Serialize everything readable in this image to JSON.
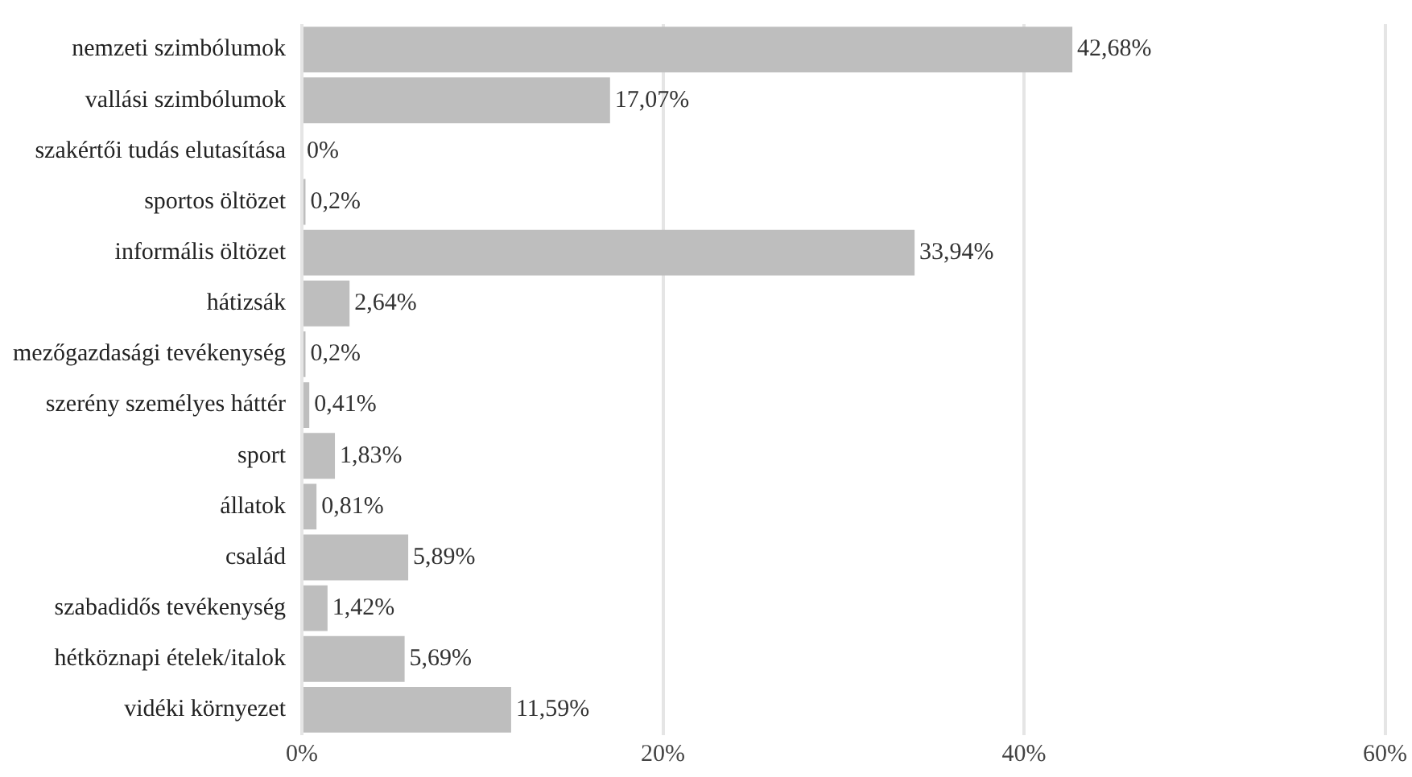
{
  "chart_data": {
    "type": "bar",
    "orientation": "horizontal",
    "categories": [
      "nemzeti szimbólumok",
      "vallási szimbólumok",
      "szakértői tudás elutasítása",
      "sportos öltözet",
      "informális öltözet",
      "hátizsák",
      "mezőgazdasági tevékenység",
      "szerény személyes háttér",
      "sport",
      "állatok",
      "család",
      "szabadidős tevékenység",
      "hétköznapi ételek/italok",
      "vidéki környezet"
    ],
    "values": [
      42.68,
      17.07,
      0,
      0.2,
      33.94,
      2.64,
      0.2,
      0.41,
      1.83,
      0.81,
      5.89,
      1.42,
      5.69,
      11.59
    ],
    "value_labels": [
      "42,68%",
      "17,07%",
      "0%",
      "0,2%",
      "33,94%",
      "2,64%",
      "0,2%",
      "0,41%",
      "1,83%",
      "0,81%",
      "5,89%",
      "1,42%",
      "5,69%",
      "11,59%"
    ],
    "color": "#bebebe",
    "xlim": [
      0,
      60
    ],
    "xticks": [
      {
        "value": 0,
        "label": "0%"
      },
      {
        "value": 20,
        "label": "20%"
      },
      {
        "value": 40,
        "label": "40%"
      },
      {
        "value": 60,
        "label": "60%"
      }
    ],
    "grid": "x",
    "legend": false
  }
}
